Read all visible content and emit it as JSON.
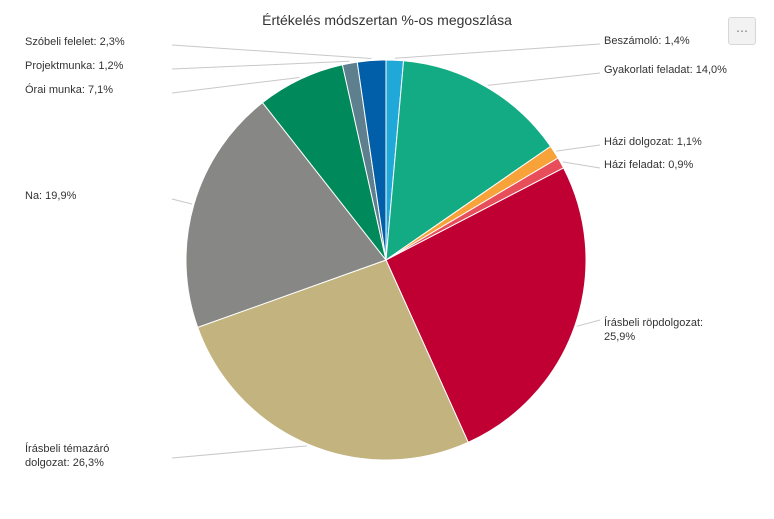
{
  "menu": {
    "icon": "more-horizontal-icon",
    "label": "⋯"
  },
  "chart_data": {
    "type": "pie",
    "title": "Értékelés módszertan %-os megoszlása",
    "unit": "%",
    "grid": false,
    "legend": "none",
    "slices": [
      {
        "label": "Beszámoló",
        "value": 1.4,
        "color": "#20a8d8",
        "label_lines": [
          "Beszámoló: 1,4%"
        ]
      },
      {
        "label": "Gyakorlati feladat",
        "value": 14.0,
        "color": "#13ab84",
        "label_lines": [
          "Gyakorlati feladat: 14,0%"
        ]
      },
      {
        "label": "Házi dolgozat",
        "value": 1.1,
        "color": "#f7a33a",
        "label_lines": [
          "Házi dolgozat: 1,1%"
        ]
      },
      {
        "label": "Házi feladat",
        "value": 0.9,
        "color": "#e84d5a",
        "label_lines": [
          "Házi feladat: 0,9%"
        ]
      },
      {
        "label": "Írásbeli röpdolgozat",
        "value": 25.9,
        "color": "#c00033",
        "label_lines": [
          "Írásbeli röpdolgozat:",
          "25,9%"
        ]
      },
      {
        "label": "Írásbeli témazáró dolgozat",
        "value": 26.3,
        "color": "#c2b37f",
        "label_lines": [
          "Írásbeli témazáró",
          "dolgozat: 26,3%"
        ]
      },
      {
        "label": "Na",
        "value": 19.9,
        "color": "#878785",
        "label_lines": [
          "Na: 19,9%"
        ]
      },
      {
        "label": "Órai munka",
        "value": 7.1,
        "color": "#00895a",
        "label_lines": [
          "Órai munka: 7,1%"
        ]
      },
      {
        "label": "Projektmunka",
        "value": 1.2,
        "color": "#5e7f8d",
        "label_lines": [
          "Projektmunka: 1,2%"
        ]
      },
      {
        "label": "Szóbeli felelet",
        "value": 2.3,
        "color": "#005fa8",
        "label_lines": [
          "Szóbeli felelet: 2,3%"
        ]
      }
    ]
  }
}
